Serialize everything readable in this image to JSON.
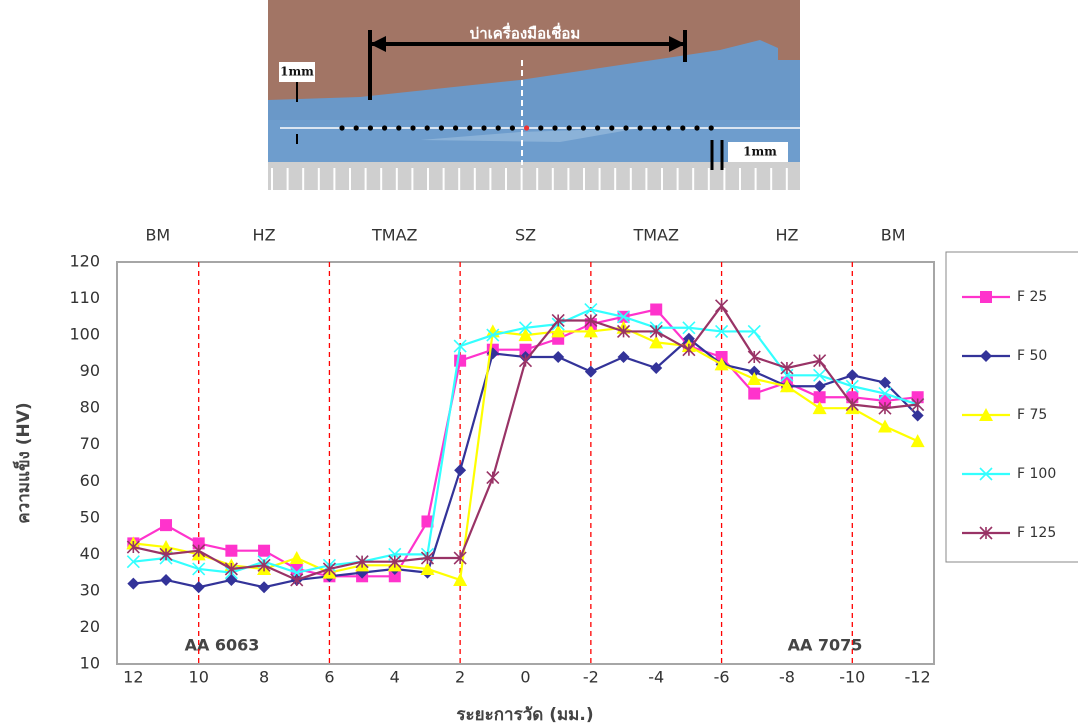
{
  "photo": {
    "caption": "บ่าเครื่องมือเชื่อม",
    "labels": [
      "1mm",
      "1mm"
    ]
  },
  "chart_data": {
    "type": "line",
    "y_label": "ความแข็ง (HV)",
    "x_label": "ระยะการวัด (มม.)",
    "zones": [
      "BM",
      "HZ",
      "TMAZ",
      "SZ",
      "TMAZ",
      "HZ",
      "BM"
    ],
    "zone_boundaries": [
      10,
      6,
      2,
      -2,
      -6,
      -10
    ],
    "annotations": [
      "AA 6063",
      "AA 7075"
    ],
    "x": [
      12,
      11,
      10,
      9,
      8,
      7,
      6,
      5,
      4,
      3,
      2,
      1,
      0,
      -1,
      -2,
      -3,
      -4,
      -5,
      -6,
      -7,
      -8,
      -9,
      -10,
      -11,
      -12
    ],
    "xlim": [
      12.5,
      -12.5
    ],
    "xticks": [
      12,
      10,
      8,
      6,
      4,
      2,
      0,
      -2,
      -4,
      -6,
      -8,
      -10,
      -12
    ],
    "ylim": [
      10,
      120
    ],
    "yticks": [
      10,
      20,
      30,
      40,
      50,
      60,
      70,
      80,
      90,
      100,
      110,
      120
    ],
    "grid": false,
    "series": [
      {
        "name": "F 25",
        "color": "#ff33cc",
        "marker": "square",
        "values": [
          43,
          48,
          43,
          41,
          41,
          36,
          34,
          34,
          34,
          49,
          93,
          96,
          96,
          99,
          103,
          105,
          107,
          97,
          94,
          84,
          87,
          83,
          83,
          82,
          83
        ]
      },
      {
        "name": "F 50",
        "color": "#333399",
        "marker": "diamond",
        "values": [
          32,
          33,
          31,
          33,
          31,
          33,
          34,
          35,
          36,
          35,
          63,
          95,
          94,
          94,
          90,
          94,
          91,
          99,
          92,
          90,
          86,
          86,
          89,
          87,
          78
        ]
      },
      {
        "name": "F 75",
        "color": "#ffff00",
        "marker": "triangle",
        "values": [
          43,
          42,
          40,
          37,
          36,
          39,
          35,
          37,
          37,
          36,
          33,
          101,
          100,
          101,
          101,
          102,
          98,
          97,
          92,
          88,
          86,
          80,
          80,
          75,
          71
        ]
      },
      {
        "name": "F 100",
        "color": "#33ffff",
        "marker": "cross",
        "values": [
          38,
          39,
          36,
          35,
          38,
          35,
          37,
          38,
          40,
          40,
          97,
          100,
          102,
          103,
          107,
          105,
          102,
          102,
          101,
          101,
          89,
          89,
          86,
          84,
          81
        ]
      },
      {
        "name": "F 125",
        "color": "#993366",
        "marker": "star",
        "values": [
          42,
          40,
          41,
          36,
          37,
          33,
          36,
          38,
          38,
          39,
          39,
          61,
          93,
          104,
          104,
          101,
          101,
          96,
          108,
          94,
          91,
          93,
          81,
          80,
          81
        ]
      }
    ]
  }
}
